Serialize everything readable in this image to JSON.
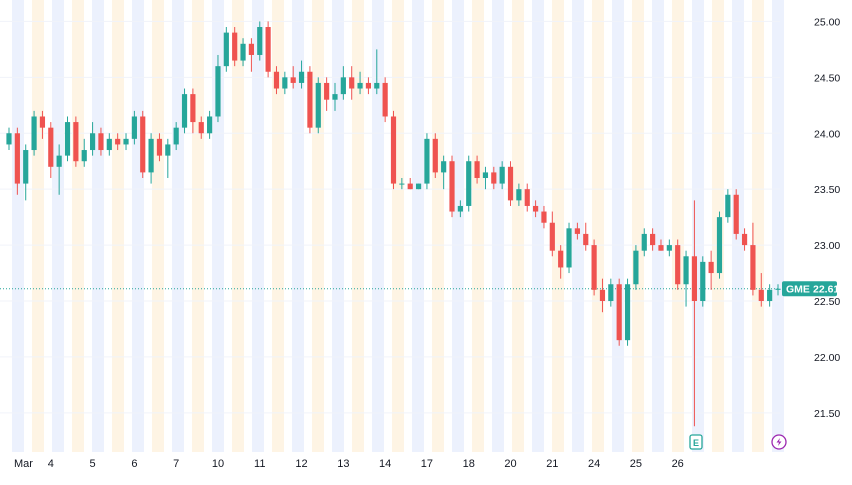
{
  "symbol": "GME",
  "last_price": 22.61,
  "colors": {
    "up": "#26a69a",
    "down": "#ef5350",
    "band_blue": "#ecf1fd",
    "band_orange": "#fef4e4",
    "grid": "#f0f3fa",
    "price_line": "#26a69a",
    "earnings_icon": "#26a69a",
    "dividend_icon": "#9c27b0"
  },
  "icons": {
    "earnings": "E",
    "split": "lightning-icon"
  },
  "chart_data": {
    "type": "candlestick",
    "y_axis": {
      "ticks": [
        "25.00",
        "24.50",
        "24.00",
        "23.50",
        "23.00",
        "22.50",
        "22.00",
        "21.50"
      ],
      "ylim": [
        21.15,
        25.12
      ]
    },
    "x_axis": {
      "labels": [
        "Mar",
        "4",
        "5",
        "6",
        "7",
        "10",
        "11",
        "12",
        "13",
        "14",
        "17",
        "18",
        "20",
        "21",
        "24",
        "25",
        "26"
      ]
    },
    "price_tag": {
      "symbol": "GME",
      "value": "22.61"
    },
    "grid": true,
    "series": [
      {
        "date": "Mar 3",
        "ohlc": [
          [
            23.9,
            24.05,
            23.85,
            24.0
          ],
          [
            24.0,
            24.05,
            23.45,
            23.55
          ],
          [
            23.55,
            23.9,
            23.4,
            23.85
          ],
          [
            23.85,
            24.2,
            23.8,
            24.15
          ],
          [
            24.15,
            24.2,
            23.95,
            24.05
          ]
        ]
      },
      {
        "date": "Mar 4",
        "ohlc": [
          [
            24.05,
            24.1,
            23.6,
            23.7
          ],
          [
            23.7,
            23.9,
            23.45,
            23.8
          ],
          [
            23.8,
            24.15,
            23.75,
            24.1
          ],
          [
            24.1,
            24.15,
            23.7,
            23.75
          ],
          [
            23.75,
            23.95,
            23.7,
            23.85
          ]
        ]
      },
      {
        "date": "Mar 5",
        "ohlc": [
          [
            23.85,
            24.1,
            23.8,
            24.0
          ],
          [
            24.0,
            24.05,
            23.8,
            23.85
          ],
          [
            23.85,
            24.0,
            23.8,
            23.95
          ],
          [
            23.95,
            24.0,
            23.85,
            23.9
          ],
          [
            23.9,
            24.0,
            23.85,
            23.95
          ]
        ]
      },
      {
        "date": "Mar 6",
        "ohlc": [
          [
            23.95,
            24.2,
            23.9,
            24.15
          ],
          [
            24.15,
            24.2,
            23.6,
            23.65
          ],
          [
            23.65,
            24.0,
            23.55,
            23.95
          ],
          [
            23.95,
            24.0,
            23.75,
            23.8
          ],
          [
            23.8,
            23.95,
            23.6,
            23.9
          ]
        ]
      },
      {
        "date": "Mar 7",
        "ohlc": [
          [
            23.9,
            24.1,
            23.85,
            24.05
          ],
          [
            24.05,
            24.4,
            24.0,
            24.35
          ],
          [
            24.35,
            24.4,
            24.0,
            24.1
          ],
          [
            24.1,
            24.15,
            23.95,
            24.0
          ],
          [
            24.0,
            24.2,
            23.95,
            24.15
          ]
        ]
      },
      {
        "date": "Mar 10",
        "ohlc": [
          [
            24.15,
            24.7,
            24.1,
            24.6
          ],
          [
            24.6,
            24.95,
            24.55,
            24.9
          ],
          [
            24.9,
            24.95,
            24.6,
            24.65
          ],
          [
            24.65,
            24.85,
            24.6,
            24.8
          ],
          [
            24.8,
            24.85,
            24.55,
            24.7
          ]
        ]
      },
      {
        "date": "Mar 11",
        "ohlc": [
          [
            24.7,
            25.0,
            24.65,
            24.95
          ],
          [
            24.95,
            25.0,
            24.5,
            24.55
          ],
          [
            24.55,
            24.6,
            24.35,
            24.4
          ],
          [
            24.4,
            24.55,
            24.35,
            24.5
          ],
          [
            24.5,
            24.6,
            24.4,
            24.45
          ]
        ]
      },
      {
        "date": "Mar 12",
        "ohlc": [
          [
            24.45,
            24.65,
            24.4,
            24.55
          ],
          [
            24.55,
            24.6,
            24.0,
            24.05
          ],
          [
            24.05,
            24.5,
            24.0,
            24.45
          ],
          [
            24.45,
            24.5,
            24.2,
            24.3
          ],
          [
            24.3,
            24.45,
            24.2,
            24.35
          ]
        ]
      },
      {
        "date": "Mar 13",
        "ohlc": [
          [
            24.35,
            24.6,
            24.3,
            24.5
          ],
          [
            24.5,
            24.6,
            24.3,
            24.4
          ],
          [
            24.4,
            24.55,
            24.35,
            24.45
          ],
          [
            24.45,
            24.5,
            24.35,
            24.4
          ],
          [
            24.4,
            24.75,
            24.35,
            24.45
          ]
        ]
      },
      {
        "date": "Mar 14",
        "ohlc": [
          [
            24.45,
            24.5,
            24.1,
            24.15
          ],
          [
            24.15,
            24.2,
            23.5,
            23.55
          ],
          [
            23.55,
            23.6,
            23.5,
            23.55
          ],
          [
            23.55,
            23.6,
            23.5,
            23.5
          ],
          [
            23.5,
            23.55,
            23.5,
            23.55
          ]
        ]
      },
      {
        "date": "Mar 17",
        "ohlc": [
          [
            23.55,
            24.0,
            23.5,
            23.95
          ],
          [
            23.95,
            24.0,
            23.6,
            23.65
          ],
          [
            23.65,
            23.8,
            23.5,
            23.75
          ],
          [
            23.75,
            23.8,
            23.25,
            23.3
          ],
          [
            23.3,
            23.4,
            23.25,
            23.35
          ]
        ]
      },
      {
        "date": "Mar 18",
        "ohlc": [
          [
            23.35,
            23.8,
            23.3,
            23.75
          ],
          [
            23.75,
            23.8,
            23.55,
            23.6
          ],
          [
            23.6,
            23.7,
            23.5,
            23.65
          ],
          [
            23.65,
            23.7,
            23.5,
            23.55
          ],
          [
            23.55,
            23.75,
            23.5,
            23.7
          ]
        ]
      },
      {
        "date": "Mar 19",
        "ohlc": [
          [
            23.7,
            23.75,
            23.35,
            23.4
          ],
          [
            23.4,
            23.55,
            23.35,
            23.5
          ],
          [
            23.5,
            23.55,
            23.3,
            23.35
          ],
          [
            23.35,
            23.4,
            23.25,
            23.3
          ],
          [
            23.3,
            23.35,
            23.15,
            23.2
          ]
        ]
      },
      {
        "date": "Mar 20",
        "ohlc": [
          [
            23.2,
            23.3,
            22.9,
            22.95
          ],
          [
            22.95,
            23.0,
            22.7,
            22.8
          ],
          [
            22.8,
            23.2,
            22.75,
            23.15
          ],
          [
            23.15,
            23.2,
            23.05,
            23.1
          ],
          [
            23.1,
            23.2,
            22.95,
            23.0
          ]
        ]
      },
      {
        "date": "Mar 21",
        "ohlc": [
          [
            23.0,
            23.05,
            22.55,
            22.6
          ],
          [
            22.6,
            22.7,
            22.4,
            22.5
          ],
          [
            22.5,
            22.7,
            22.45,
            22.65
          ],
          [
            22.65,
            22.7,
            22.1,
            22.15
          ],
          [
            22.15,
            22.7,
            22.1,
            22.65
          ]
        ]
      },
      {
        "date": "Mar 24",
        "ohlc": [
          [
            22.65,
            23.0,
            22.6,
            22.95
          ],
          [
            22.95,
            23.15,
            22.9,
            23.1
          ],
          [
            23.1,
            23.15,
            22.95,
            23.0
          ],
          [
            23.0,
            23.05,
            22.95,
            22.95
          ],
          [
            22.95,
            23.05,
            22.9,
            23.0
          ]
        ]
      },
      {
        "date": "Mar 25",
        "ohlc": [
          [
            23.0,
            23.05,
            22.6,
            22.65
          ],
          [
            22.65,
            22.95,
            22.45,
            22.9
          ],
          [
            22.9,
            23.4,
            21.38,
            22.5
          ],
          [
            22.5,
            22.9,
            22.45,
            22.85
          ],
          [
            22.85,
            22.95,
            22.6,
            22.75
          ]
        ]
      },
      {
        "date": "Mar 26",
        "ohlc": [
          [
            22.75,
            23.3,
            22.7,
            23.25
          ],
          [
            23.25,
            23.5,
            23.2,
            23.45
          ],
          [
            23.45,
            23.5,
            23.05,
            23.1
          ],
          [
            23.1,
            23.15,
            22.95,
            23.0
          ],
          [
            23.0,
            23.2,
            22.55,
            22.6
          ]
        ]
      },
      {
        "date": "Mar 27",
        "ohlc": [
          [
            22.6,
            22.75,
            22.45,
            22.5
          ],
          [
            22.5,
            22.65,
            22.45,
            22.6
          ],
          [
            22.6,
            22.65,
            22.55,
            22.61
          ]
        ]
      }
    ]
  }
}
